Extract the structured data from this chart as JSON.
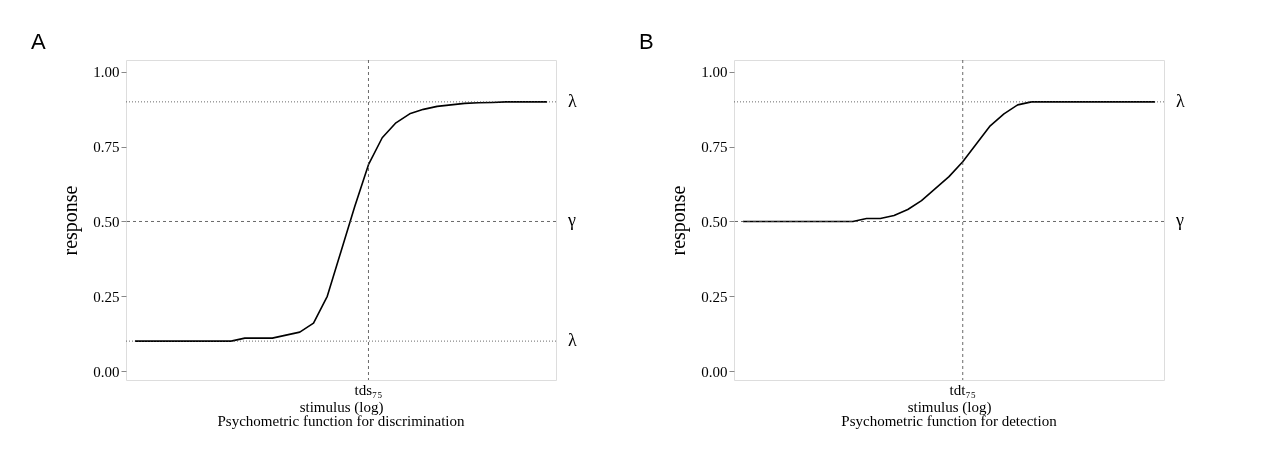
{
  "chart_data": [
    {
      "type": "line",
      "title": "Psychometric function for discrimination",
      "xlabel": "stimulus (log)",
      "ylabel": "response",
      "annotations": [
        "A"
      ],
      "categories": [
        null,
        null,
        null,
        null,
        null,
        null,
        null,
        null,
        null,
        null,
        null,
        null,
        null,
        null,
        null,
        null,
        null,
        "tds₇₅",
        null,
        null,
        null,
        null,
        null,
        null,
        null,
        null,
        null,
        null,
        null,
        null,
        null
      ],
      "series": [
        {
          "color": "#000000",
          "values": [
            0.1,
            0.1,
            0.1,
            0.1,
            0.1,
            0.1,
            0.1,
            0.1,
            0.11,
            0.11,
            0.11,
            0.12,
            0.13,
            0.16,
            0.25,
            0.4,
            0.55,
            0.69,
            0.78,
            0.83,
            0.86,
            0.875,
            0.885,
            0.89,
            0.895,
            0.897,
            0.898,
            0.9,
            0.9,
            0.9,
            0.9
          ]
        }
      ],
      "ylim": [
        -0.03,
        1.04
      ],
      "yticks": [
        {
          "value": 0,
          "label": "0.00"
        },
        {
          "value": 0.25,
          "label": "0.25"
        },
        {
          "value": 0.5,
          "label": "0.50"
        },
        {
          "value": 0.75,
          "label": "0.75"
        },
        {
          "value": 1,
          "label": "1.00"
        }
      ],
      "ref_lines": [
        {
          "axis": "x",
          "value": "tds₇₅",
          "line_style": "dashed"
        },
        {
          "axis": "y",
          "value": 0.9,
          "label": "λ",
          "line_style": "dotted"
        },
        {
          "axis": "y",
          "value": 0.5,
          "label": "γ",
          "line_style": "dashed"
        },
        {
          "axis": "y",
          "value": 0.1,
          "label": "λ",
          "line_style": "dotted"
        }
      ],
      "line_style": "solid"
    },
    {
      "type": "line",
      "title": "Psychometric function for detection",
      "xlabel": "stimulus (log)",
      "ylabel": "response",
      "annotations": [
        "B"
      ],
      "categories": [
        null,
        null,
        null,
        null,
        null,
        null,
        null,
        null,
        null,
        null,
        null,
        null,
        null,
        null,
        null,
        null,
        "tdt₇₅",
        null,
        null,
        null,
        null,
        null,
        null,
        null,
        null,
        null,
        null,
        null,
        null,
        null,
        null
      ],
      "series": [
        {
          "color": "#000000",
          "values": [
            0.5,
            0.5,
            0.5,
            0.5,
            0.5,
            0.5,
            0.5,
            0.5,
            0.5,
            0.51,
            0.51,
            0.52,
            0.54,
            0.57,
            0.61,
            0.65,
            0.7,
            0.76,
            0.82,
            0.86,
            0.89,
            0.9,
            0.9,
            0.9,
            0.9,
            0.9,
            0.9,
            0.9,
            0.9,
            0.9,
            0.9
          ]
        }
      ],
      "ylim": [
        -0.03,
        1.04
      ],
      "yticks": [
        {
          "value": 0,
          "label": "0.00"
        },
        {
          "value": 0.25,
          "label": "0.25"
        },
        {
          "value": 0.5,
          "label": "0.50"
        },
        {
          "value": 0.75,
          "label": "0.75"
        },
        {
          "value": 1,
          "label": "1.00"
        }
      ],
      "ref_lines": [
        {
          "axis": "x",
          "value": "tdt₇₅",
          "line_style": "dashed"
        },
        {
          "axis": "y",
          "value": 0.9,
          "label": "λ",
          "line_style": "dotted"
        },
        {
          "axis": "y",
          "value": 0.5,
          "label": "γ",
          "line_style": "dashed"
        }
      ],
      "line_style": "solid"
    }
  ]
}
